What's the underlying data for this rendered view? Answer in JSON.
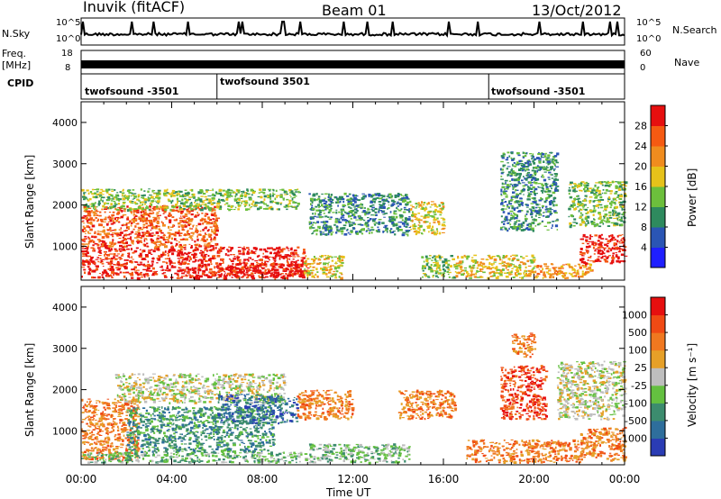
{
  "header": {
    "radar": "Inuvik (fitACF)",
    "beam": "Beam 01",
    "date": "13/Oct/2012"
  },
  "left_labels": {
    "nsky": "N.Sky",
    "nsky_top": "10^5",
    "nsky_bottom": "10^0",
    "freq": "Freq.",
    "freq_unit": "[MHz]",
    "freq_top": "18",
    "freq_bottom": "8",
    "cpid": "CPID"
  },
  "right_labels": {
    "nsearch": "N.Search",
    "nsearch_top": "10^5",
    "nsearch_bottom": "10^0",
    "nave": "Nave",
    "nave_top": "60",
    "nave_bottom": "0"
  },
  "cpid_segments": [
    {
      "label": "twofsound -3501",
      "start_hour": 0
    },
    {
      "label": "twofsound 3501",
      "start_hour": 6
    },
    {
      "label": "twofsound -3501",
      "start_hour": 18
    }
  ],
  "chart_data": [
    {
      "type": "heatmap",
      "panel": "power",
      "ylabel": "Slant Range [km]",
      "xlabel": "",
      "ylim": [
        180,
        4500
      ],
      "yticks": [
        "1000",
        "2000",
        "3000",
        "4000"
      ],
      "xlim": [
        0,
        24
      ],
      "colorbar_label": "Power [dB]",
      "colorbar_ticks": [
        "4",
        "8",
        "12",
        "16",
        "20",
        "24",
        "28"
      ],
      "colorbar_colors": [
        "#1f1fff",
        "#2a55b4",
        "#2e8a5e",
        "#6cbf3c",
        "#e6c21a",
        "#f08c1e",
        "#f55a12",
        "#e60f0f"
      ],
      "regions": [
        {
          "t0": 0.0,
          "t1": 9.8,
          "r0": 250,
          "r1": 1000,
          "level": 7
        },
        {
          "t0": 0.0,
          "t1": 6.0,
          "r0": 1000,
          "r1": 2000,
          "level": 6
        },
        {
          "t0": 0.0,
          "t1": 9.6,
          "r0": 1900,
          "r1": 2400,
          "level": 3
        },
        {
          "t0": 6.0,
          "t1": 10.0,
          "r0": 250,
          "r1": 600,
          "level": 7
        },
        {
          "t0": 9.8,
          "t1": 11.5,
          "r0": 250,
          "r1": 800,
          "level": 4
        },
        {
          "t0": 10.0,
          "t1": 14.5,
          "r0": 1300,
          "r1": 2300,
          "level": 2
        },
        {
          "t0": 14.5,
          "t1": 16.0,
          "r0": 1300,
          "r1": 2100,
          "level": 4
        },
        {
          "t0": 15.0,
          "t1": 16.5,
          "r0": 250,
          "r1": 800,
          "level": 3
        },
        {
          "t0": 16.5,
          "t1": 20.0,
          "r0": 250,
          "r1": 800,
          "level": 4
        },
        {
          "t0": 18.5,
          "t1": 21.0,
          "r0": 1400,
          "r1": 3300,
          "level": 2
        },
        {
          "t0": 20.0,
          "t1": 22.5,
          "r0": 250,
          "r1": 600,
          "level": 5
        },
        {
          "t0": 22.0,
          "t1": 24.0,
          "r0": 600,
          "r1": 1300,
          "level": 7
        },
        {
          "t0": 21.5,
          "t1": 24.0,
          "r0": 1500,
          "r1": 2600,
          "level": 3
        }
      ]
    },
    {
      "type": "heatmap",
      "panel": "velocity",
      "ylabel": "Slant Range [km]",
      "xlabel": "Time UT",
      "ylim": [
        180,
        4500
      ],
      "yticks": [
        "1000",
        "2000",
        "3000",
        "4000"
      ],
      "xlim": [
        0,
        24
      ],
      "xticks": [
        "00:00",
        "04:00",
        "08:00",
        "12:00",
        "16:00",
        "20:00",
        "00:00"
      ],
      "colorbar_label": "Velocity [m s⁻¹]",
      "colorbar_ticks": [
        "1000",
        "500",
        "100",
        "25",
        "-25",
        "-100",
        "-500",
        "-1000"
      ],
      "colorbar_colors": [
        "#2a3cb4",
        "#2e6e9c",
        "#3c8c6e",
        "#64c040",
        "#bebebe",
        "#e6a028",
        "#f07820",
        "#f04a14",
        "#e60f0f"
      ],
      "regions": [
        {
          "t0": 0.0,
          "t1": 2.5,
          "r0": 300,
          "r1": 1800,
          "level": 6
        },
        {
          "t0": 2.0,
          "t1": 8.5,
          "r0": 500,
          "r1": 1600,
          "level": 2
        },
        {
          "t0": 1.5,
          "t1": 9.0,
          "r0": 1700,
          "r1": 2400,
          "level": 4
        },
        {
          "t0": 6.0,
          "t1": 9.5,
          "r0": 1200,
          "r1": 1900,
          "level": 1
        },
        {
          "t0": 0.0,
          "t1": 10.0,
          "r0": 250,
          "r1": 500,
          "level": 3
        },
        {
          "t0": 10.0,
          "t1": 14.5,
          "r0": 250,
          "r1": 700,
          "level": 3
        },
        {
          "t0": 9.5,
          "t1": 12.0,
          "r0": 1300,
          "r1": 2000,
          "level": 6
        },
        {
          "t0": 14.0,
          "t1": 16.5,
          "r0": 1300,
          "r1": 2000,
          "level": 6
        },
        {
          "t0": 17.0,
          "t1": 22.0,
          "r0": 250,
          "r1": 800,
          "level": 6
        },
        {
          "t0": 18.5,
          "t1": 20.5,
          "r0": 1300,
          "r1": 2600,
          "level": 7
        },
        {
          "t0": 19.0,
          "t1": 20.0,
          "r0": 2800,
          "r1": 3400,
          "level": 6
        },
        {
          "t0": 21.0,
          "t1": 24.0,
          "r0": 1300,
          "r1": 2700,
          "level": 4
        },
        {
          "t0": 22.0,
          "t1": 24.0,
          "r0": 300,
          "r1": 1100,
          "level": 6
        }
      ]
    }
  ]
}
